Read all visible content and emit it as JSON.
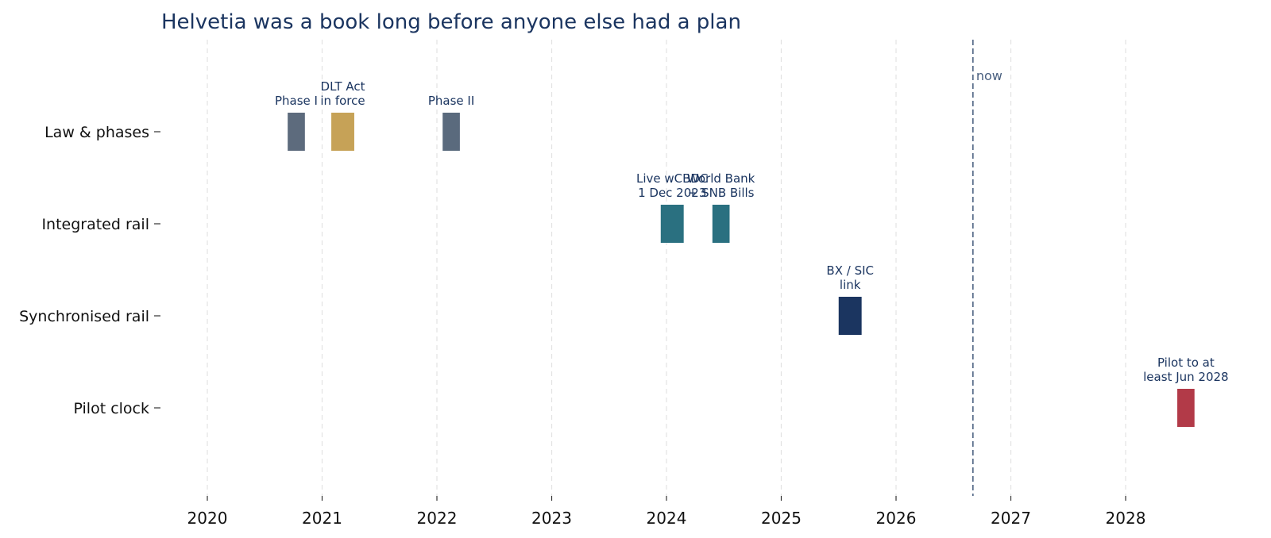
{
  "chart_data": {
    "type": "timeline",
    "title": "Helvetia was a book long before anyone else had a plan",
    "x_ticks": [
      "2020",
      "2021",
      "2022",
      "2023",
      "2024",
      "2025",
      "2026",
      "2027",
      "2028"
    ],
    "xlim": [
      2019.7,
      2029.0
    ],
    "grid": true,
    "rows": [
      "Law & phases",
      "Integrated rail",
      "Synchronised rail",
      "Pilot clock"
    ],
    "now": {
      "label": "now",
      "x": 2026.67,
      "color": "#4a6080"
    },
    "events": [
      {
        "row": 0,
        "start": 2020.7,
        "end": 2020.85,
        "label": [
          "Phase I"
        ],
        "color": "#5d6b7d"
      },
      {
        "row": 0,
        "start": 2021.08,
        "end": 2021.28,
        "label": [
          "DLT Act",
          "in force"
        ],
        "color": "#c6a257"
      },
      {
        "row": 0,
        "start": 2022.05,
        "end": 2022.2,
        "label": [
          "Phase II"
        ],
        "color": "#5a6a7d"
      },
      {
        "row": 1,
        "start": 2023.95,
        "end": 2024.15,
        "label": [
          "Live wCBDC",
          "1 Dec 2023"
        ],
        "color": "#2a7080"
      },
      {
        "row": 1,
        "start": 2024.4,
        "end": 2024.55,
        "label": [
          "World Bank",
          "+ SNB Bills"
        ],
        "color": "#2a7080"
      },
      {
        "row": 2,
        "start": 2025.5,
        "end": 2025.7,
        "label": [
          "BX / SIC",
          "link"
        ],
        "color": "#1b3560"
      },
      {
        "row": 3,
        "start": 2028.45,
        "end": 2028.6,
        "label": [
          "Pilot to at",
          "least Jun 2028"
        ],
        "color": "#b23a48"
      }
    ]
  }
}
